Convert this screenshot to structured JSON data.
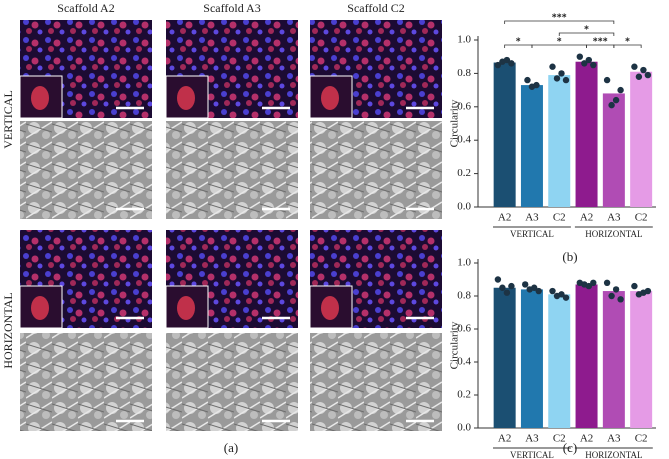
{
  "panel_a": {
    "columns": [
      "Scaffold A2",
      "Scaffold A3",
      "Scaffold C2"
    ],
    "rows": [
      "VERTICAL",
      "HORIZONTAL"
    ],
    "label": "(a)"
  },
  "chart_data": [
    {
      "type": "bar",
      "label": "(b)",
      "y_label": "Circularity",
      "categories": [
        "A2",
        "A3",
        "C2",
        "A2",
        "A3",
        "C2"
      ],
      "values": [
        0.865,
        0.73,
        0.79,
        0.87,
        0.68,
        0.81
      ],
      "colors": [
        "#1b4f72",
        "#2178ae",
        "#8fd4f2",
        "#8e1b8e",
        "#b04cb4",
        "#e59be6"
      ],
      "replicates": [
        [
          0.85,
          0.87,
          0.88,
          0.86
        ],
        [
          0.76,
          0.72,
          0.73
        ],
        [
          0.84,
          0.77,
          0.8,
          0.76
        ],
        [
          0.9,
          0.86,
          0.88,
          0.85
        ],
        [
          0.76,
          0.61,
          0.64,
          0.7
        ],
        [
          0.84,
          0.78,
          0.82,
          0.79
        ]
      ],
      "groups": [
        {
          "label": "VERTICAL",
          "categories": [
            0,
            1,
            2
          ]
        },
        {
          "label": "HORIZONTAL",
          "categories": [
            3,
            4,
            5
          ]
        }
      ],
      "comparisons": [
        {
          "label": "***",
          "between": [
            0,
            4
          ]
        },
        {
          "label": "*",
          "between": [
            2,
            4
          ]
        },
        {
          "label": "*",
          "between": [
            0,
            1
          ]
        },
        {
          "label": "*",
          "between": [
            1,
            3
          ]
        },
        {
          "label": "***",
          "between": [
            3,
            4
          ]
        },
        {
          "label": "*",
          "between": [
            4,
            5
          ]
        }
      ],
      "ylim": [
        0,
        1
      ],
      "yticks": [
        {
          "value": 0,
          "label": "0.0"
        },
        0.2,
        0.4,
        0.6,
        0.8,
        {
          "value": 1,
          "label": "1.0"
        }
      ]
    },
    {
      "type": "bar",
      "label": "(c)",
      "y_label": "Circularity",
      "categories": [
        "A2",
        "A3",
        "C2",
        "A2",
        "A3",
        "C2"
      ],
      "values": [
        0.85,
        0.84,
        0.81,
        0.87,
        0.83,
        0.83
      ],
      "colors": [
        "#1b4f72",
        "#2178ae",
        "#8fd4f2",
        "#8e1b8e",
        "#b04cb4",
        "#e59be6"
      ],
      "replicates": [
        [
          0.9,
          0.85,
          0.82,
          0.86
        ],
        [
          0.87,
          0.84,
          0.85,
          0.83
        ],
        [
          0.83,
          0.8,
          0.81,
          0.79
        ],
        [
          0.88,
          0.87,
          0.86,
          0.88
        ],
        [
          0.88,
          0.8,
          0.84,
          0.78
        ],
        [
          0.86,
          0.81,
          0.82,
          0.83
        ]
      ],
      "groups": [
        {
          "label": "VERTICAL",
          "categories": [
            0,
            1,
            2
          ]
        },
        {
          "label": "HORIZONTAL",
          "categories": [
            3,
            4,
            5
          ]
        }
      ],
      "comparisons": [],
      "ylim": [
        0,
        1
      ],
      "yticks": [
        {
          "value": 0,
          "label": "0.0"
        },
        0.2,
        0.4,
        0.6,
        0.8,
        {
          "value": 1,
          "label": "1.0"
        }
      ]
    }
  ]
}
